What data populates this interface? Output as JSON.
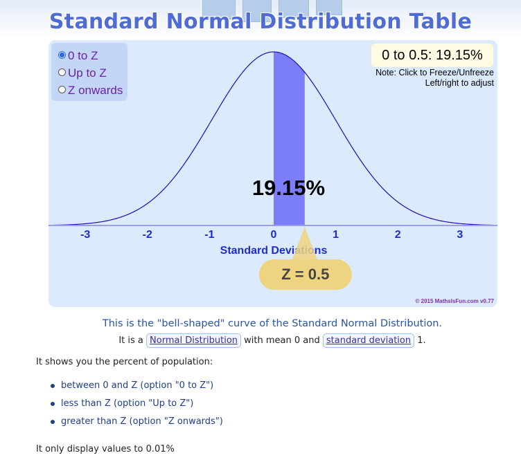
{
  "header": {
    "title": "Standard Normal Distribution Table"
  },
  "widget": {
    "options": [
      {
        "label": "0 to Z",
        "selected": true
      },
      {
        "label": "Up to Z",
        "selected": false
      },
      {
        "label": "Z onwards",
        "selected": false
      }
    ],
    "result_text": "0 to 0.5: 19.15%",
    "note_line1": "Note: Click to Freeze/Unfreeze",
    "note_line2": "Left/right to adjust",
    "percent_label": "19.15%",
    "z_label": "Z = 0.5",
    "copyright": "© 2015 MathsIsFun.com v0.77",
    "colors": {
      "curve": "#1f0bbd",
      "shade": "#7b7ef8",
      "axis": "#9b9de8",
      "tick_label": "#1e2bd0",
      "axis_title": "#1e2bd0",
      "z_bubble": "#eed480",
      "background": "#dbeafc"
    }
  },
  "chart_data": {
    "type": "area",
    "xlabel": "Standard Deviations",
    "ylabel": "",
    "xlim": [
      -3.6,
      3.6
    ],
    "x_ticks": [
      -3,
      -2,
      -1,
      0,
      1,
      2,
      3
    ],
    "x_tick_labels": [
      "-3",
      "-2",
      "-1",
      "0",
      "1",
      "2",
      "3"
    ],
    "mean": 0,
    "std_dev": 1,
    "shaded_from": 0,
    "shaded_to": 0.5,
    "shaded_percent": 19.15,
    "z": 0.5,
    "grid": false
  },
  "content": {
    "caption": "This is the \"bell-shaped\" curve of the Standard Normal Distribution.",
    "sub_pre": "It is a ",
    "link_normal": "Normal Distribution",
    "sub_mid": " with mean 0 and ",
    "link_std": "standard deviation",
    "sub_post": " 1.",
    "shows": "It shows you the percent of population:",
    "bullets": [
      "between 0 and Z (option \"0 to Z\")",
      "less than Z (option \"Up to Z\")",
      "greater than Z (option \"Z onwards\")"
    ],
    "precision": "It only display values to 0.01%"
  }
}
